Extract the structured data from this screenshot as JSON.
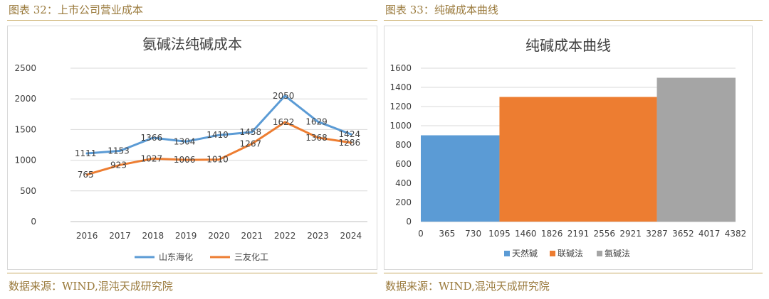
{
  "left": {
    "figure_title": "图表 32：上市公司营业成本",
    "source": "数据来源：WIND,混沌天成研究院"
  },
  "right": {
    "figure_title": "图表 33：纯碱成本曲线",
    "source": "数据来源：WIND,混沌天成研究院"
  },
  "chart_data": [
    {
      "type": "line",
      "title": "氨碱法纯碱成本",
      "xlabel": "",
      "ylabel": "",
      "ylim": [
        0,
        2500
      ],
      "y_ticks": [
        0,
        500,
        1000,
        1500,
        2000,
        2500
      ],
      "categories": [
        "2016",
        "2017",
        "2018",
        "2019",
        "2020",
        "2021",
        "2022",
        "2023",
        "2024"
      ],
      "grid": true,
      "legend_position": "bottom",
      "series": [
        {
          "name": "山东海化",
          "color": "#5b9bd5",
          "values": [
            1111,
            1153,
            1366,
            1304,
            1410,
            1458,
            2050,
            1629,
            1424
          ]
        },
        {
          "name": "三友化工",
          "color": "#ed7d31",
          "values": [
            765,
            923,
            1027,
            1006,
            1010,
            1267,
            1622,
            1368,
            1286
          ]
        }
      ]
    },
    {
      "type": "area",
      "title": "纯碱成本曲线",
      "xlabel": "",
      "ylabel": "",
      "xlim": [
        0,
        4382
      ],
      "ylim": [
        0,
        1600
      ],
      "x_ticks": [
        "0",
        "365",
        "730",
        "1095",
        "1460",
        "1826",
        "2191",
        "2556",
        "2921",
        "3287",
        "3652",
        "4017",
        "4382"
      ],
      "y_ticks": [
        0,
        200,
        400,
        600,
        800,
        1000,
        1200,
        1400,
        1600
      ],
      "grid": true,
      "legend_position": "bottom",
      "series": [
        {
          "name": "天然碱",
          "color": "#5b9bd5",
          "x_start": 0,
          "x_end": 1095,
          "value": 900
        },
        {
          "name": "联碱法",
          "color": "#ed7d31",
          "x_start": 1095,
          "x_end": 3287,
          "value": 1300
        },
        {
          "name": "氨碱法",
          "color": "#a5a5a5",
          "x_start": 3287,
          "x_end": 4382,
          "value": 1500
        }
      ]
    }
  ]
}
